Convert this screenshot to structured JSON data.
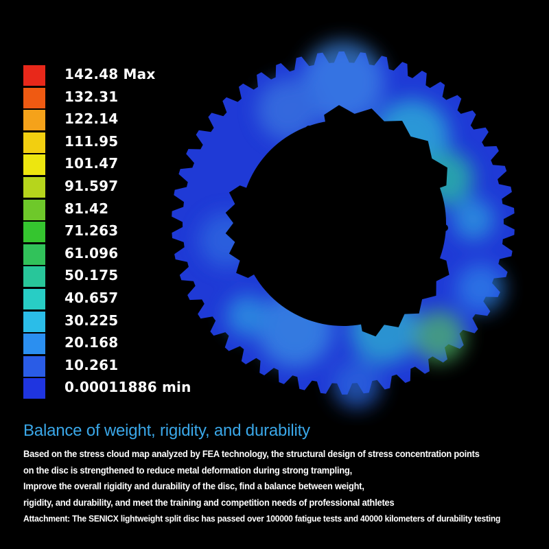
{
  "legend": {
    "items": [
      {
        "label": "142.48 Max",
        "color": "#e8281a"
      },
      {
        "label": "132.31",
        "color": "#ef5a12"
      },
      {
        "label": "122.14",
        "color": "#f5a21a"
      },
      {
        "label": "111.95",
        "color": "#f2cf10"
      },
      {
        "label": "101.47",
        "color": "#ede60f"
      },
      {
        "label": "91.597",
        "color": "#b6d51c"
      },
      {
        "label": "81.42",
        "color": "#6ec82a"
      },
      {
        "label": "71.263",
        "color": "#35c52f"
      },
      {
        "label": "61.096",
        "color": "#31c25a"
      },
      {
        "label": "50.175",
        "color": "#28c69a"
      },
      {
        "label": "40.657",
        "color": "#28cdc5"
      },
      {
        "label": "30.225",
        "color": "#2bbde8"
      },
      {
        "label": "20.168",
        "color": "#2b8ff0"
      },
      {
        "label": "10.261",
        "color": "#2a5ce6"
      },
      {
        "label": "0.00011886 min",
        "color": "#1f35e0"
      }
    ]
  },
  "disc": {
    "base_color": "#1f3ad6",
    "teeth": 50
  },
  "headline": "Balance of weight, rigidity, and durability",
  "body": {
    "line1": "Based on the stress cloud map analyzed by FEA technology, the structural design of stress concentration points",
    "line2": "on the disc is strengthened to reduce metal deformation during strong trampling,",
    "line3": "Improve the overall rigidity and durability of the disc, find a balance between weight,",
    "line4": "rigidity, and durability, and meet the training and competition needs of professional athletes",
    "line5": "Attachment: The SENICX lightweight split disc has passed over 100000 fatigue tests and 40000 kilometers of durability testing"
  }
}
